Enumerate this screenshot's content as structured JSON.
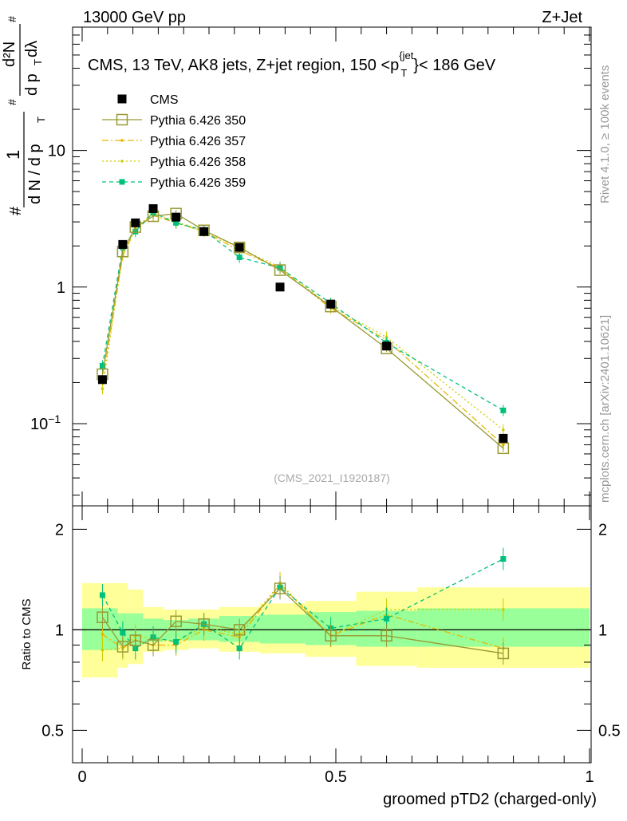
{
  "header": {
    "energy_label": "13000 GeV pp",
    "process_label": "Z+Jet"
  },
  "side_labels": {
    "rivet": "Rivet 4.1.0, ≥ 100k events",
    "mcplots": "mcplots.cern.ch [arXiv:2401.10621]"
  },
  "watermark": "(CMS_2021_I1920187)",
  "colors": {
    "cms": "#000000",
    "p350": "#999933",
    "p357": "#e6b800",
    "p358": "#cccc00",
    "p359": "#00c07a",
    "band_inner": "#99ff99",
    "band_outer": "#ffff99"
  },
  "chart_data": [
    {
      "type": "scatter",
      "title": "CMS, 13 TeV, AK8 jets, Z+jet region, 150 <p_T^{jet}< 186 GeV",
      "title_parts": {
        "main": "CMS, 13 TeV, AK8 jets, Z+jet region, 150 <p",
        "sup": "{jet",
        "sub": "T",
        "tail": "}< 186 GeV"
      },
      "ylabel": "1/(dN/dp_T) d²N/dp_T dλ",
      "ylabel_parts": {
        "num1": "1",
        "den1": "d N / d p",
        "num2": "d²N",
        "den2": "d p",
        "den2b": " dλ",
        "sub": "T",
        "hash": "#"
      },
      "xlabel": "groomed pTD2 (charged-only)",
      "xlim": [
        0,
        1
      ],
      "ylim": [
        0.025,
        80
      ],
      "yscale": "log",
      "y_ticks": [
        {
          "value": 0.1,
          "label": "10",
          "sup": "−1"
        },
        {
          "value": 1,
          "label": "1",
          "sup": ""
        },
        {
          "value": 10,
          "label": "10",
          "sup": ""
        }
      ],
      "x": [
        0.04,
        0.08,
        0.105,
        0.14,
        0.185,
        0.24,
        0.31,
        0.39,
        0.49,
        0.6,
        0.83
      ],
      "series": [
        {
          "name": "CMS",
          "key": "cms",
          "values": [
            0.21,
            2.05,
            2.95,
            3.75,
            3.25,
            2.55,
            1.95,
            1.0,
            0.75,
            0.37,
            0.078
          ]
        },
        {
          "name": "Pythia 6.426 350",
          "key": "p350",
          "values": [
            0.23,
            1.82,
            2.75,
            3.3,
            3.45,
            2.6,
            1.95,
            1.33,
            0.72,
            0.355,
            0.066
          ]
        },
        {
          "name": "Pythia 6.426 357",
          "key": "p357",
          "values": [
            0.2,
            1.7,
            2.65,
            3.35,
            2.95,
            2.55,
            1.85,
            1.37,
            0.7,
            0.41,
            0.07
          ]
        },
        {
          "name": "Pythia 6.426 358",
          "key": "p358",
          "values": [
            0.18,
            1.75,
            2.7,
            3.5,
            3.0,
            2.6,
            1.92,
            1.4,
            0.72,
            0.43,
            0.09
          ]
        },
        {
          "name": "Pythia 6.426 359",
          "key": "p359",
          "values": [
            0.265,
            1.95,
            2.55,
            3.5,
            2.95,
            2.6,
            1.65,
            1.38,
            0.76,
            0.39,
            0.125
          ]
        }
      ],
      "legend": [
        "CMS",
        "Pythia 6.426 350",
        "Pythia 6.426 357",
        "Pythia 6.426 358",
        "Pythia 6.426 359"
      ]
    },
    {
      "type": "line",
      "title": "",
      "ylabel": "Ratio to CMS",
      "xlabel": "groomed pTD2 (charged-only)",
      "xlim": [
        0,
        1
      ],
      "ylim": [
        0.4,
        2.35
      ],
      "yscale": "log",
      "y_ticks": [
        0.5,
        1,
        2
      ],
      "y_tick_labels": [
        "0.5",
        "1",
        "2"
      ],
      "x_ticks": [
        0,
        0.5,
        1
      ],
      "x_tick_labels": [
        "0",
        "0.5",
        "1"
      ],
      "bins": [
        {
          "lo": 0.0,
          "hi": 0.07,
          "inner": [
            0.87,
            1.16
          ],
          "outer": [
            0.72,
            1.38
          ]
        },
        {
          "lo": 0.07,
          "hi": 0.09,
          "inner": [
            0.9,
            1.12
          ],
          "outer": [
            0.77,
            1.38
          ]
        },
        {
          "lo": 0.09,
          "hi": 0.12,
          "inner": [
            0.9,
            1.12
          ],
          "outer": [
            0.79,
            1.32
          ]
        },
        {
          "lo": 0.12,
          "hi": 0.16,
          "inner": [
            0.92,
            1.08
          ],
          "outer": [
            0.86,
            1.17
          ]
        },
        {
          "lo": 0.16,
          "hi": 0.21,
          "inner": [
            0.93,
            1.07
          ],
          "outer": [
            0.87,
            1.15
          ]
        },
        {
          "lo": 0.21,
          "hi": 0.27,
          "inner": [
            0.93,
            1.08
          ],
          "outer": [
            0.88,
            1.15
          ]
        },
        {
          "lo": 0.27,
          "hi": 0.35,
          "inner": [
            0.92,
            1.1
          ],
          "outer": [
            0.86,
            1.17
          ]
        },
        {
          "lo": 0.35,
          "hi": 0.44,
          "inner": [
            0.91,
            1.11
          ],
          "outer": [
            0.85,
            1.2
          ]
        },
        {
          "lo": 0.44,
          "hi": 0.54,
          "inner": [
            0.9,
            1.13
          ],
          "outer": [
            0.83,
            1.22
          ]
        },
        {
          "lo": 0.54,
          "hi": 0.66,
          "inner": [
            0.89,
            1.14
          ],
          "outer": [
            0.78,
            1.3
          ]
        },
        {
          "lo": 0.66,
          "hi": 1.0,
          "inner": [
            0.89,
            1.16
          ],
          "outer": [
            0.77,
            1.34
          ]
        }
      ],
      "series": [
        {
          "name": "Pythia 6.426 350",
          "key": "p350",
          "values": [
            1.09,
            0.89,
            0.93,
            0.9,
            1.06,
            1.04,
            1.0,
            1.33,
            0.96,
            0.96,
            0.85
          ]
        },
        {
          "name": "Pythia 6.426 357",
          "key": "p357",
          "values": [
            0.97,
            0.88,
            0.93,
            0.9,
            0.9,
            1.0,
            0.95,
            1.37,
            0.96,
            1.11,
            0.88
          ]
        },
        {
          "name": "Pythia 6.426 358",
          "key": "p358",
          "values": [
            0.87,
            0.88,
            0.96,
            0.94,
            0.92,
            1.02,
            0.97,
            1.38,
            0.96,
            1.15,
            1.15
          ]
        },
        {
          "name": "Pythia 6.426 359",
          "key": "p359",
          "values": [
            1.27,
            0.98,
            0.88,
            0.95,
            0.92,
            1.04,
            0.88,
            1.34,
            1.01,
            1.08,
            1.63
          ]
        }
      ]
    }
  ]
}
